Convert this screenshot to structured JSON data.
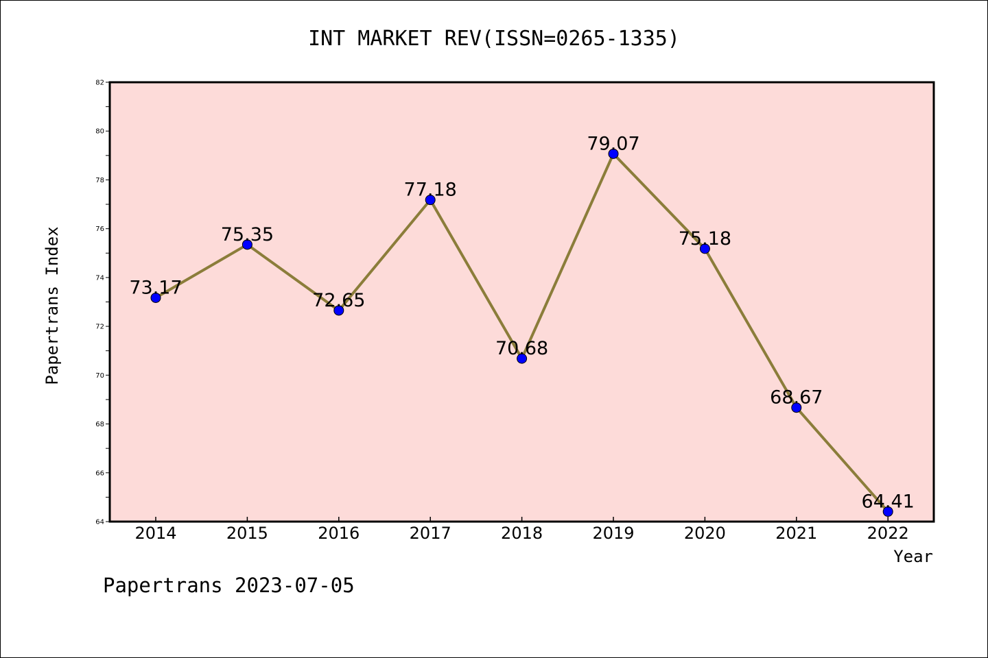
{
  "chart_data": {
    "type": "line",
    "title": "INT MARKET REV(ISSN=0265-1335)",
    "xlabel": "Year",
    "ylabel": "Papertrans Index",
    "categories": [
      "2014",
      "2015",
      "2016",
      "2017",
      "2018",
      "2019",
      "2020",
      "2021",
      "2022"
    ],
    "values": [
      73.17,
      75.35,
      72.65,
      77.18,
      70.68,
      79.07,
      75.18,
      68.67,
      64.41
    ],
    "data_labels": [
      "73.17",
      "75.35",
      "72.65",
      "77.18",
      "70.68",
      "79.07",
      "75.18",
      "68.67",
      "64.41"
    ],
    "ylim": [
      64,
      82
    ],
    "yticks": [
      "64",
      "66",
      "68",
      "70",
      "72",
      "74",
      "76",
      "78",
      "80",
      "82"
    ],
    "grid": false,
    "legend": "none",
    "colors": {
      "plot_background": "#fddbd9",
      "line": "#8b7d3a",
      "marker": "#0000ff"
    }
  },
  "footer": {
    "text": "Papertrans 2023-07-05"
  }
}
